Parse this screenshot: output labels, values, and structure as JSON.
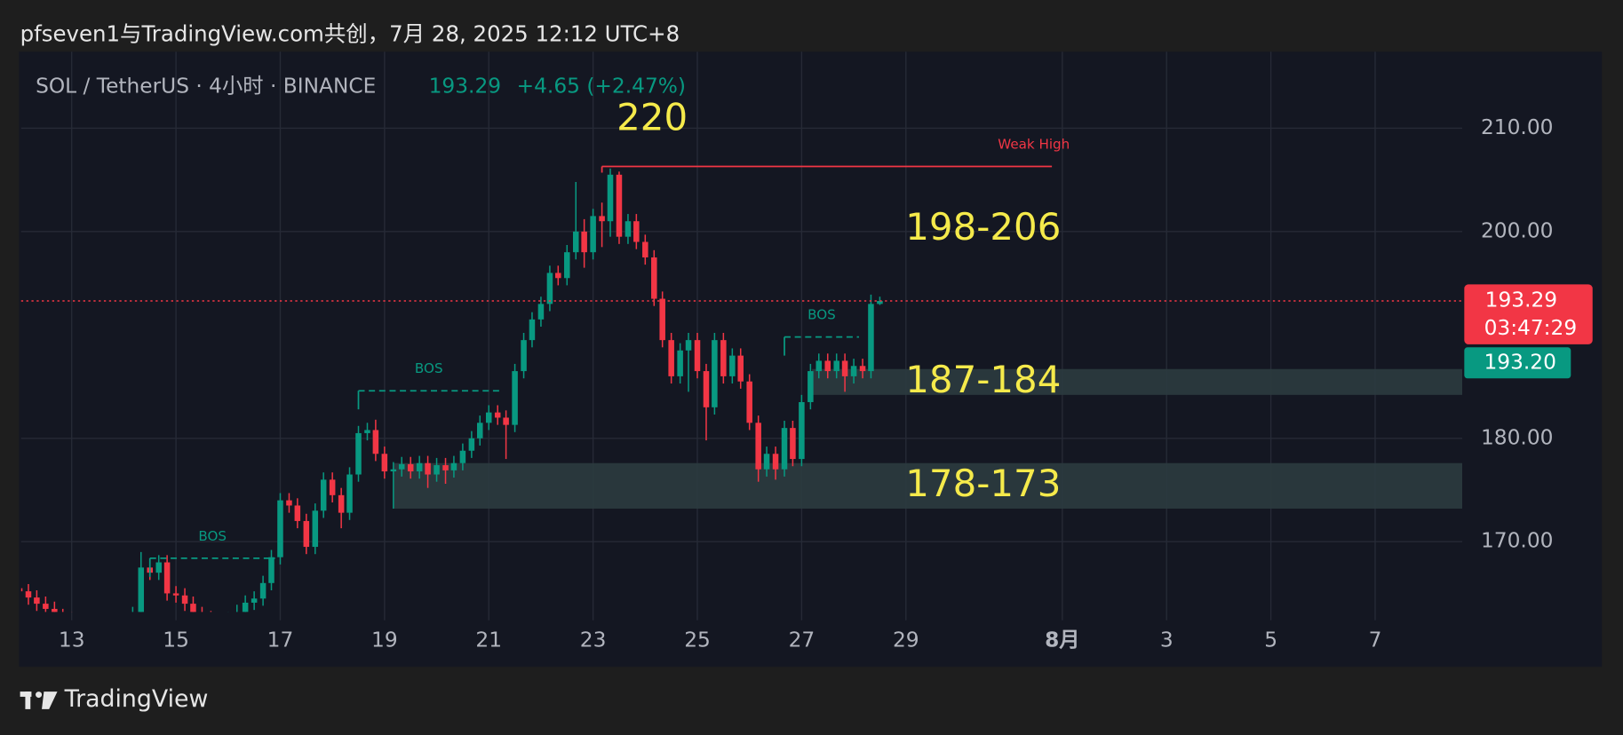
{
  "header": {
    "title": "pfseven1与TradingView.com共创，7月 28, 2025 12:12 UTC+8"
  },
  "chart_data": {
    "type": "candlestick",
    "symbol": "SOL / TetherUS · 4小时 · BINANCE",
    "legend_price": "193.29",
    "legend_change": "+4.65 (+2.47%)",
    "up_color": "#089981",
    "down_color": "#f23645",
    "xlim": [
      12.03,
      39.67
    ],
    "xticks": [
      13,
      15,
      17,
      19,
      21,
      23,
      25,
      27,
      29,
      {
        "value": 32,
        "label": "8月"
      },
      {
        "value": 34,
        "label": "3"
      },
      {
        "value": 36,
        "label": "5"
      },
      {
        "value": 38,
        "label": "7"
      }
    ],
    "ylim": [
      163.2,
      217.2
    ],
    "yticks": [
      {
        "value": 170,
        "label": "170.00"
      },
      {
        "value": 180,
        "label": "180.00"
      },
      {
        "value": 200,
        "label": "200.00"
      },
      {
        "value": 210,
        "label": "210.00"
      }
    ],
    "grid": true,
    "x": [
      12,
      12.17,
      12.33,
      12.5,
      12.67,
      12.83,
      13,
      13.17,
      13.33,
      13.5,
      13.67,
      13.83,
      14,
      14.17,
      14.33,
      14.5,
      14.67,
      14.83,
      15,
      15.17,
      15.33,
      15.5,
      15.67,
      15.83,
      16,
      16.17,
      16.33,
      16.5,
      16.67,
      16.83,
      17,
      17.17,
      17.33,
      17.5,
      17.67,
      17.83,
      18,
      18.17,
      18.33,
      18.5,
      18.67,
      18.83,
      19,
      19.17,
      19.33,
      19.5,
      19.67,
      19.83,
      20,
      20.17,
      20.33,
      20.5,
      20.67,
      20.83,
      21,
      21.17,
      21.33,
      21.5,
      21.67,
      21.83,
      22,
      22.17,
      22.33,
      22.5,
      22.67,
      22.83,
      23,
      23.17,
      23.33,
      23.5,
      23.67,
      23.83,
      24,
      24.17,
      24.33,
      24.5,
      24.67,
      24.83,
      25,
      25.17,
      25.33,
      25.5,
      25.67,
      25.83,
      26,
      26.17,
      26.33,
      26.5,
      26.67,
      26.83,
      27,
      27.17,
      27.33,
      27.5,
      27.67,
      27.83,
      28,
      28.17,
      28.33,
      28.5
    ],
    "ohlc": [
      [
        165.5,
        166.2,
        164.5,
        165.2
      ],
      [
        165.2,
        165.9,
        163.9,
        164.6
      ],
      [
        164.6,
        165.3,
        163.3,
        164.0
      ],
      [
        164.0,
        164.7,
        162.8,
        163.5
      ],
      [
        163.5,
        164.2,
        162.1,
        162.8
      ],
      [
        162.8,
        163.5,
        161.8,
        162.5
      ],
      [
        162.5,
        163.2,
        161.3,
        162.0
      ],
      [
        162.0,
        162.7,
        161.1,
        161.8
      ],
      [
        161.8,
        162.9,
        161.1,
        162.2
      ],
      [
        162.2,
        162.9,
        160.8,
        161.5
      ],
      [
        161.5,
        162.2,
        160.3,
        161.0
      ],
      [
        161.0,
        162.3,
        160.3,
        161.6
      ],
      [
        161.6,
        163.1,
        160.9,
        162.4
      ],
      [
        162.4,
        163.7,
        161.7,
        163.0
      ],
      [
        163.0,
        169.0,
        162.3,
        167.5
      ],
      [
        167.5,
        168.2,
        166.3,
        167.0
      ],
      [
        167.0,
        168.7,
        166.3,
        168.0
      ],
      [
        168.0,
        168.7,
        164.3,
        165.0
      ],
      [
        165.0,
        165.7,
        164.1,
        164.8
      ],
      [
        164.8,
        165.5,
        163.3,
        164.0
      ],
      [
        164.0,
        164.7,
        162.3,
        163.0
      ],
      [
        163.0,
        163.7,
        161.9,
        162.6
      ],
      [
        162.6,
        163.3,
        161.5,
        162.2
      ],
      [
        162.2,
        162.9,
        161.2,
        161.9
      ],
      [
        161.9,
        163.2,
        161.2,
        162.5
      ],
      [
        162.5,
        163.9,
        161.8,
        163.2
      ],
      [
        163.2,
        164.8,
        162.5,
        164.1
      ],
      [
        164.1,
        165.2,
        163.4,
        164.5
      ],
      [
        164.5,
        166.7,
        163.8,
        166.0
      ],
      [
        166.0,
        169.2,
        165.3,
        168.5
      ],
      [
        168.5,
        174.7,
        167.8,
        174.0
      ],
      [
        174.0,
        174.7,
        172.8,
        173.5
      ],
      [
        173.5,
        174.2,
        171.3,
        172.0
      ],
      [
        172.0,
        172.7,
        168.8,
        169.5
      ],
      [
        169.5,
        173.7,
        168.8,
        173.0
      ],
      [
        173.0,
        176.7,
        172.3,
        176.0
      ],
      [
        176.0,
        176.7,
        173.8,
        174.5
      ],
      [
        174.5,
        175.2,
        171.3,
        172.8
      ],
      [
        172.8,
        177.2,
        172.1,
        176.5
      ],
      [
        176.5,
        181.2,
        175.8,
        180.5
      ],
      [
        180.5,
        181.5,
        179.8,
        180.8
      ],
      [
        180.8,
        181.8,
        177.8,
        178.5
      ],
      [
        178.5,
        179.2,
        176.1,
        176.8
      ],
      [
        176.8,
        177.7,
        173.2,
        177.0
      ],
      [
        177.0,
        178.2,
        176.3,
        177.5
      ],
      [
        177.5,
        178.2,
        176.1,
        176.8
      ],
      [
        176.8,
        178.3,
        176.1,
        177.6
      ],
      [
        177.6,
        178.3,
        175.2,
        176.5
      ],
      [
        176.5,
        178.1,
        175.8,
        177.4
      ],
      [
        177.4,
        178.1,
        175.6,
        176.9
      ],
      [
        176.9,
        178.3,
        176.2,
        177.6
      ],
      [
        177.6,
        179.5,
        176.9,
        178.8
      ],
      [
        178.8,
        180.7,
        178.1,
        180.0
      ],
      [
        180.0,
        182.2,
        179.3,
        181.5
      ],
      [
        181.5,
        183.2,
        180.8,
        182.5
      ],
      [
        182.5,
        183.2,
        181.3,
        182.0
      ],
      [
        182.0,
        182.7,
        178.0,
        181.3
      ],
      [
        181.3,
        187.2,
        180.6,
        186.5
      ],
      [
        186.5,
        190.2,
        185.8,
        189.5
      ],
      [
        189.5,
        192.2,
        188.8,
        191.5
      ],
      [
        191.5,
        193.7,
        190.8,
        193.0
      ],
      [
        193.0,
        196.7,
        192.3,
        196.0
      ],
      [
        196.0,
        196.7,
        194.8,
        195.5
      ],
      [
        195.5,
        198.7,
        194.8,
        198.0
      ],
      [
        198.0,
        204.8,
        197.3,
        200.0
      ],
      [
        200.0,
        201.2,
        196.5,
        198.0
      ],
      [
        198.0,
        202.2,
        197.3,
        201.5
      ],
      [
        201.5,
        202.8,
        198.5,
        201.0
      ],
      [
        201.0,
        206.1,
        199.5,
        205.5
      ],
      [
        205.5,
        205.8,
        198.8,
        199.5
      ],
      [
        199.5,
        201.7,
        198.8,
        201.0
      ],
      [
        201.0,
        201.7,
        198.3,
        199.0
      ],
      [
        199.0,
        199.7,
        196.8,
        197.5
      ],
      [
        197.5,
        198.2,
        192.8,
        193.5
      ],
      [
        193.5,
        194.2,
        188.8,
        189.5
      ],
      [
        189.5,
        190.2,
        185.3,
        186.0
      ],
      [
        186.0,
        189.2,
        185.3,
        188.5
      ],
      [
        188.5,
        190.2,
        184.5,
        189.5
      ],
      [
        189.5,
        190.2,
        185.8,
        186.5
      ],
      [
        186.5,
        187.2,
        179.8,
        183.0
      ],
      [
        183.0,
        190.2,
        182.3,
        189.5
      ],
      [
        189.5,
        190.2,
        185.3,
        186.0
      ],
      [
        186.0,
        188.7,
        185.3,
        188.0
      ],
      [
        188.0,
        188.7,
        184.8,
        185.5
      ],
      [
        185.5,
        186.2,
        180.8,
        181.5
      ],
      [
        181.5,
        182.2,
        175.8,
        177.0
      ],
      [
        177.0,
        179.2,
        176.3,
        178.5
      ],
      [
        178.5,
        179.2,
        176.0,
        177.0
      ],
      [
        177.0,
        181.7,
        176.3,
        181.0
      ],
      [
        181.0,
        181.7,
        177.3,
        178.0
      ],
      [
        178.0,
        184.2,
        177.3,
        183.5
      ],
      [
        183.5,
        187.2,
        182.8,
        186.5
      ],
      [
        186.5,
        188.2,
        185.8,
        187.5
      ],
      [
        187.5,
        188.2,
        185.8,
        186.5
      ],
      [
        186.5,
        188.2,
        185.8,
        187.5
      ],
      [
        187.5,
        188.2,
        184.5,
        186.0
      ],
      [
        186.0,
        187.7,
        185.3,
        187.0
      ],
      [
        187.0,
        187.7,
        185.8,
        186.5
      ],
      [
        186.5,
        193.9,
        185.8,
        193.0
      ],
      [
        193.0,
        193.7,
        192.9,
        193.29
      ]
    ],
    "last_price": 193.29,
    "countdown": "03:47:29",
    "second_price": {
      "value": 193.2,
      "label": "193.20"
    },
    "zones": [
      {
        "label": "187-184",
        "low": 184.2,
        "high": 186.7,
        "from": 27.2
      },
      {
        "label": "178-173",
        "low": 173.2,
        "high": 177.6,
        "from": 19.17
      }
    ],
    "weak_high": {
      "label": "Weak High",
      "value": 206.3,
      "from": 23.17,
      "to": 31.8
    },
    "bos": [
      {
        "label": "BOS",
        "value": 168.4,
        "from": 14.5,
        "to": 16.9
      },
      {
        "label": "BOS",
        "value": 184.6,
        "from": 18.5,
        "to": 21.2
      },
      {
        "label": "BOS",
        "value": 189.8,
        "from": 26.67,
        "to": 28.1
      }
    ],
    "annotations": [
      "220",
      "198-206"
    ]
  },
  "footer": {
    "brand": "TradingView"
  }
}
